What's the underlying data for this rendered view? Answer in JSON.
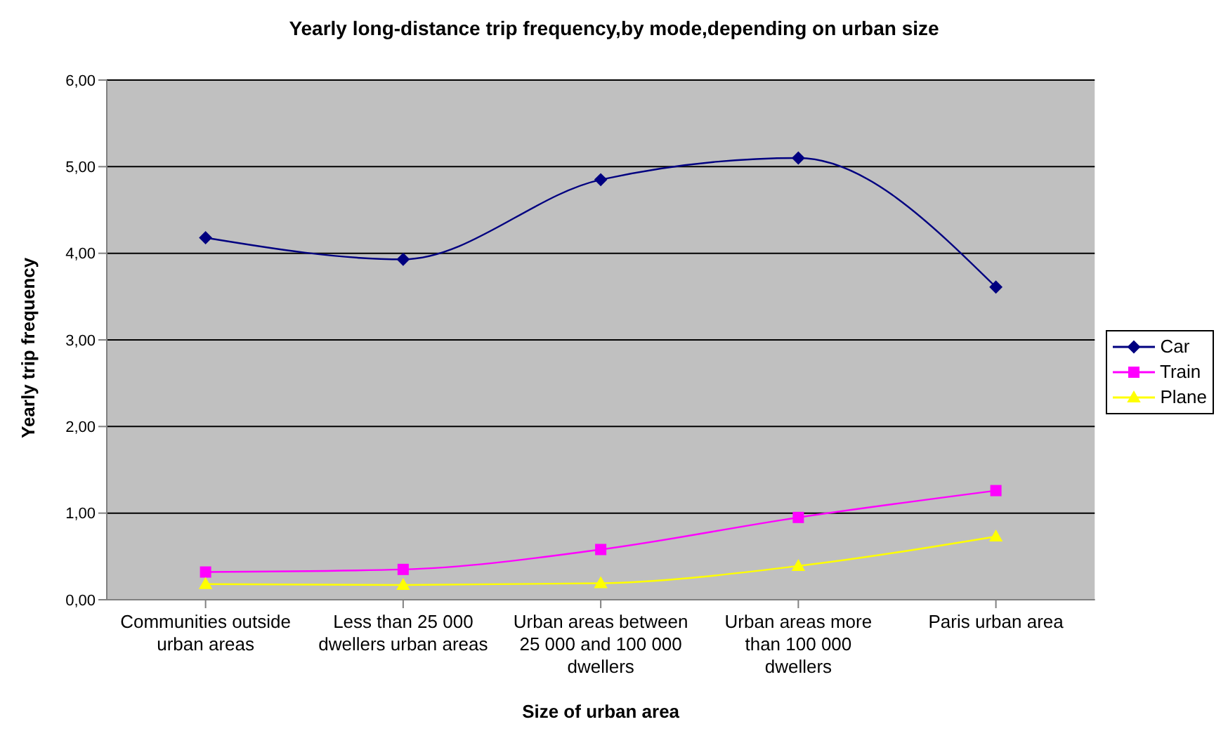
{
  "chart_data": {
    "type": "line",
    "title": "Yearly long-distance trip frequency,by mode,depending on urban size",
    "xlabel": "Size of urban area",
    "ylabel": "Yearly trip frequency",
    "categories": [
      "Communities outside urban areas",
      "Less than 25 000 dwellers urban areas",
      "Urban areas between 25 000 and 100 000 dwellers",
      "Urban areas more than 100 000 dwellers",
      "Paris urban area"
    ],
    "series": [
      {
        "name": "Car",
        "color": "#000080",
        "marker": "diamond",
        "values": [
          4.18,
          3.93,
          4.85,
          5.1,
          3.61
        ]
      },
      {
        "name": "Train",
        "color": "#ff00ff",
        "marker": "square",
        "values": [
          0.32,
          0.35,
          0.58,
          0.95,
          1.26
        ]
      },
      {
        "name": "Plane",
        "color": "#ffff00",
        "marker": "triangle",
        "values": [
          0.18,
          0.17,
          0.19,
          0.39,
          0.73
        ]
      }
    ],
    "ylim": [
      0,
      6
    ],
    "yticks": [
      {
        "value": 0,
        "label": "0,00"
      },
      {
        "value": 1,
        "label": "1,00"
      },
      {
        "value": 2,
        "label": "2,00"
      },
      {
        "value": 3,
        "label": "3,00"
      },
      {
        "value": 4,
        "label": "4,00"
      },
      {
        "value": 5,
        "label": "5,00"
      },
      {
        "value": 6,
        "label": "6,00"
      }
    ],
    "grid": "y",
    "legend": "right"
  }
}
